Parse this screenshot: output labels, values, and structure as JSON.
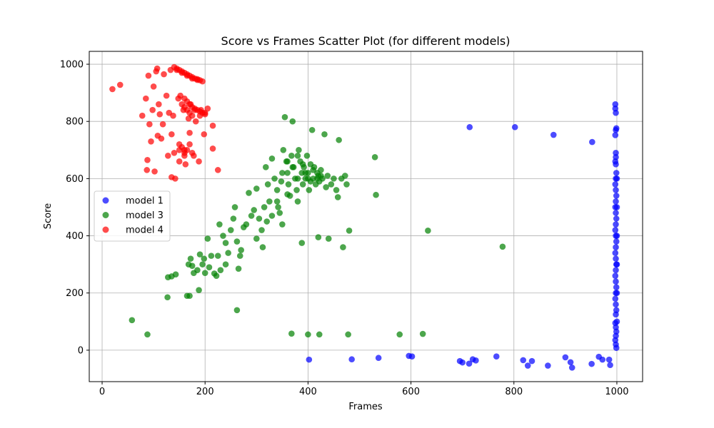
{
  "chart_data": {
    "type": "scatter",
    "title": "Score vs Frames Scatter Plot (for different models)",
    "xlabel": "Frames",
    "ylabel": "Score",
    "xlim": [
      -25,
      1050
    ],
    "ylim": [
      -110,
      1045
    ],
    "xticks": [
      0,
      200,
      400,
      600,
      800,
      1000
    ],
    "yticks": [
      0,
      200,
      400,
      600,
      800,
      1000
    ],
    "grid": true,
    "legend_position": "center-left",
    "series": [
      {
        "name": "model 1",
        "color": "#0000ff",
        "points": [
          [
            714,
            780
          ],
          [
            802,
            780
          ],
          [
            877,
            753
          ],
          [
            952,
            728
          ],
          [
            402,
            -33
          ],
          [
            485,
            -32
          ],
          [
            537,
            -27
          ],
          [
            596,
            -20
          ],
          [
            602,
            -22
          ],
          [
            695,
            -38
          ],
          [
            700,
            -43
          ],
          [
            713,
            -47
          ],
          [
            720,
            -32
          ],
          [
            726,
            -36
          ],
          [
            766,
            -22
          ],
          [
            818,
            -35
          ],
          [
            827,
            -54
          ],
          [
            835,
            -38
          ],
          [
            866,
            -54
          ],
          [
            900,
            -25
          ],
          [
            910,
            -42
          ],
          [
            913,
            -61
          ],
          [
            951,
            -48
          ],
          [
            965,
            -23
          ],
          [
            972,
            -33
          ],
          [
            985,
            -33
          ],
          [
            987,
            -52
          ],
          [
            997,
            860
          ],
          [
            997,
            845
          ],
          [
            998,
            830
          ],
          [
            999,
            776
          ],
          [
            998,
            770
          ],
          [
            997,
            752
          ],
          [
            998,
            690
          ],
          [
            998,
            675
          ],
          [
            997,
            660
          ],
          [
            998,
            650
          ],
          [
            999,
            620
          ],
          [
            998,
            600
          ],
          [
            997,
            580
          ],
          [
            998,
            560
          ],
          [
            999,
            540
          ],
          [
            998,
            520
          ],
          [
            997,
            500
          ],
          [
            998,
            480
          ],
          [
            999,
            460
          ],
          [
            998,
            440
          ],
          [
            997,
            420
          ],
          [
            998,
            400
          ],
          [
            999,
            380
          ],
          [
            998,
            360
          ],
          [
            997,
            340
          ],
          [
            998,
            320
          ],
          [
            999,
            300
          ],
          [
            998,
            280
          ],
          [
            997,
            260
          ],
          [
            998,
            240
          ],
          [
            999,
            220
          ],
          [
            998,
            200
          ],
          [
            997,
            180
          ],
          [
            998,
            160
          ],
          [
            999,
            140
          ],
          [
            998,
            125
          ],
          [
            997,
            95
          ],
          [
            998,
            80
          ],
          [
            999,
            65
          ],
          [
            998,
            50
          ],
          [
            997,
            35
          ],
          [
            998,
            20
          ],
          [
            999,
            8
          ],
          [
            1000,
            600
          ],
          [
            1000,
            500
          ],
          [
            1000,
            400
          ],
          [
            1000,
            300
          ],
          [
            1000,
            200
          ],
          [
            1000,
            100
          ]
        ]
      },
      {
        "name": "model 3",
        "color": "#008000",
        "points": [
          [
            58,
            105
          ],
          [
            88,
            55
          ],
          [
            127,
            185
          ],
          [
            128,
            255
          ],
          [
            135,
            258
          ],
          [
            143,
            265
          ],
          [
            165,
            190
          ],
          [
            170,
            190
          ],
          [
            168,
            300
          ],
          [
            172,
            320
          ],
          [
            175,
            295
          ],
          [
            178,
            270
          ],
          [
            185,
            280
          ],
          [
            188,
            210
          ],
          [
            190,
            335
          ],
          [
            195,
            300
          ],
          [
            198,
            320
          ],
          [
            200,
            270
          ],
          [
            205,
            390
          ],
          [
            208,
            290
          ],
          [
            212,
            330
          ],
          [
            218,
            268
          ],
          [
            222,
            260
          ],
          [
            228,
            440
          ],
          [
            230,
            280
          ],
          [
            235,
            400
          ],
          [
            240,
            375
          ],
          [
            245,
            340
          ],
          [
            250,
            420
          ],
          [
            255,
            460
          ],
          [
            258,
            500
          ],
          [
            262,
            380
          ],
          [
            265,
            285
          ],
          [
            268,
            330
          ],
          [
            275,
            430
          ],
          [
            280,
            440
          ],
          [
            285,
            550
          ],
          [
            290,
            470
          ],
          [
            295,
            490
          ],
          [
            300,
            565
          ],
          [
            305,
            460
          ],
          [
            310,
            420
          ],
          [
            312,
            360
          ],
          [
            315,
            500
          ],
          [
            318,
            640
          ],
          [
            322,
            580
          ],
          [
            325,
            520
          ],
          [
            330,
            670
          ],
          [
            335,
            600
          ],
          [
            340,
            560
          ],
          [
            342,
            500
          ],
          [
            345,
            480
          ],
          [
            348,
            590
          ],
          [
            350,
            440
          ],
          [
            352,
            700
          ],
          [
            355,
            815
          ],
          [
            358,
            660
          ],
          [
            360,
            620
          ],
          [
            362,
            580
          ],
          [
            365,
            540
          ],
          [
            368,
            680
          ],
          [
            370,
            800
          ],
          [
            372,
            640
          ],
          [
            375,
            600
          ],
          [
            378,
            560
          ],
          [
            380,
            520
          ],
          [
            382,
            700
          ],
          [
            385,
            660
          ],
          [
            388,
            620
          ],
          [
            390,
            580
          ],
          [
            392,
            640
          ],
          [
            395,
            600
          ],
          [
            398,
            680
          ],
          [
            400,
            620
          ],
          [
            402,
            560
          ],
          [
            405,
            650
          ],
          [
            408,
            770
          ],
          [
            410,
            600
          ],
          [
            412,
            640
          ],
          [
            415,
            580
          ],
          [
            418,
            620
          ],
          [
            420,
            610
          ],
          [
            422,
            590
          ],
          [
            425,
            630
          ],
          [
            428,
            600
          ],
          [
            432,
            755
          ],
          [
            435,
            570
          ],
          [
            438,
            610
          ],
          [
            440,
            390
          ],
          [
            445,
            580
          ],
          [
            450,
            600
          ],
          [
            455,
            560
          ],
          [
            458,
            535
          ],
          [
            460,
            735
          ],
          [
            465,
            600
          ],
          [
            468,
            360
          ],
          [
            472,
            610
          ],
          [
            480,
            418
          ],
          [
            420,
            395
          ],
          [
            388,
            375
          ],
          [
            475,
            580
          ],
          [
            530,
            675
          ],
          [
            532,
            543
          ],
          [
            633,
            418
          ],
          [
            778,
            362
          ],
          [
            262,
            140
          ],
          [
            368,
            58
          ],
          [
            400,
            55
          ],
          [
            422,
            55
          ],
          [
            478,
            55
          ],
          [
            578,
            55
          ],
          [
            623,
            57
          ],
          [
            225,
            330
          ],
          [
            240,
            300
          ],
          [
            270,
            350
          ],
          [
            300,
            390
          ],
          [
            320,
            450
          ],
          [
            330,
            470
          ],
          [
            340,
            520
          ],
          [
            360,
            545
          ],
          [
            380,
            600
          ],
          [
            390,
            650
          ],
          [
            400,
            600
          ],
          [
            410,
            630
          ],
          [
            370,
            640
          ],
          [
            350,
            620
          ],
          [
            360,
            660
          ],
          [
            380,
            680
          ],
          [
            395,
            620
          ],
          [
            405,
            590
          ],
          [
            418,
            600
          ],
          [
            425,
            610
          ]
        ]
      },
      {
        "name": "model 4",
        "color": "#ff0000",
        "points": [
          [
            20,
            913
          ],
          [
            35,
            928
          ],
          [
            78,
            820
          ],
          [
            85,
            880
          ],
          [
            87,
            630
          ],
          [
            88,
            665
          ],
          [
            90,
            960
          ],
          [
            92,
            790
          ],
          [
            95,
            730
          ],
          [
            98,
            840
          ],
          [
            100,
            922
          ],
          [
            102,
            625
          ],
          [
            105,
            975
          ],
          [
            107,
            985
          ],
          [
            108,
            750
          ],
          [
            110,
            860
          ],
          [
            112,
            825
          ],
          [
            115,
            740
          ],
          [
            118,
            790
          ],
          [
            120,
            965
          ],
          [
            125,
            890
          ],
          [
            128,
            680
          ],
          [
            130,
            830
          ],
          [
            133,
            980
          ],
          [
            135,
            755
          ],
          [
            138,
            820
          ],
          [
            140,
            690
          ],
          [
            142,
            600
          ],
          [
            145,
            980
          ],
          [
            148,
            880
          ],
          [
            150,
            720
          ],
          [
            152,
            890
          ],
          [
            155,
            970
          ],
          [
            158,
            840
          ],
          [
            160,
            700
          ],
          [
            162,
            650
          ],
          [
            165,
            960
          ],
          [
            168,
            810
          ],
          [
            170,
            760
          ],
          [
            172,
            860
          ],
          [
            175,
            950
          ],
          [
            178,
            680
          ],
          [
            180,
            840
          ],
          [
            182,
            800
          ],
          [
            185,
            945
          ],
          [
            188,
            660
          ],
          [
            190,
            820
          ],
          [
            192,
            840
          ],
          [
            195,
            940
          ],
          [
            198,
            755
          ],
          [
            200,
            830
          ],
          [
            205,
            845
          ],
          [
            215,
            785
          ],
          [
            215,
            705
          ],
          [
            225,
            630
          ],
          [
            140,
            990
          ],
          [
            145,
            985
          ],
          [
            150,
            980
          ],
          [
            155,
            975
          ],
          [
            160,
            970
          ],
          [
            165,
            965
          ],
          [
            170,
            960
          ],
          [
            175,
            955
          ],
          [
            180,
            950
          ],
          [
            185,
            948
          ],
          [
            190,
            944
          ],
          [
            160,
            880
          ],
          [
            165,
            870
          ],
          [
            170,
            860
          ],
          [
            175,
            850
          ],
          [
            180,
            845
          ],
          [
            185,
            840
          ],
          [
            190,
            835
          ],
          [
            195,
            830
          ],
          [
            200,
            825
          ],
          [
            155,
            860
          ],
          [
            160,
            850
          ],
          [
            165,
            840
          ],
          [
            170,
            830
          ],
          [
            175,
            820
          ],
          [
            150,
            700
          ],
          [
            155,
            710
          ],
          [
            160,
            690
          ],
          [
            165,
            700
          ],
          [
            170,
            720
          ],
          [
            175,
            690
          ],
          [
            160,
            680
          ],
          [
            150,
            660
          ],
          [
            135,
            605
          ]
        ]
      }
    ]
  }
}
